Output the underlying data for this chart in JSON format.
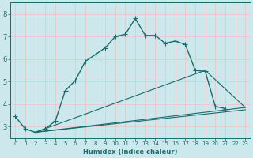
{
  "xlabel": "Humidex (Indice chaleur)",
  "bg_color": "#cce8ec",
  "grid_color": "#b0d4d8",
  "line_color": "#1a6b6b",
  "xlim": [
    -0.5,
    23.5
  ],
  "ylim": [
    2.5,
    8.5
  ],
  "xticks": [
    0,
    1,
    2,
    3,
    4,
    5,
    6,
    7,
    8,
    9,
    10,
    11,
    12,
    13,
    14,
    15,
    16,
    17,
    18,
    19,
    20,
    21,
    22,
    23
  ],
  "yticks": [
    3,
    4,
    5,
    6,
    7,
    8
  ],
  "main_curve": {
    "x": [
      0,
      1,
      2,
      3,
      4,
      5,
      6,
      7,
      8,
      9,
      10,
      11,
      12,
      13,
      14,
      15,
      16,
      17,
      18,
      19,
      20,
      21
    ],
    "y": [
      3.45,
      2.9,
      2.75,
      2.9,
      3.25,
      4.6,
      5.05,
      5.9,
      6.2,
      6.5,
      7.0,
      7.1,
      7.8,
      7.05,
      7.05,
      6.7,
      6.8,
      6.65,
      5.5,
      5.45,
      3.9,
      3.8
    ]
  },
  "straight_lines": [
    {
      "x": [
        2,
        23
      ],
      "y": [
        2.75,
        3.75
      ]
    },
    {
      "x": [
        2,
        23
      ],
      "y": [
        2.75,
        3.85
      ]
    },
    {
      "x": [
        2,
        19,
        23
      ],
      "y": [
        2.75,
        5.5,
        3.85
      ]
    }
  ]
}
